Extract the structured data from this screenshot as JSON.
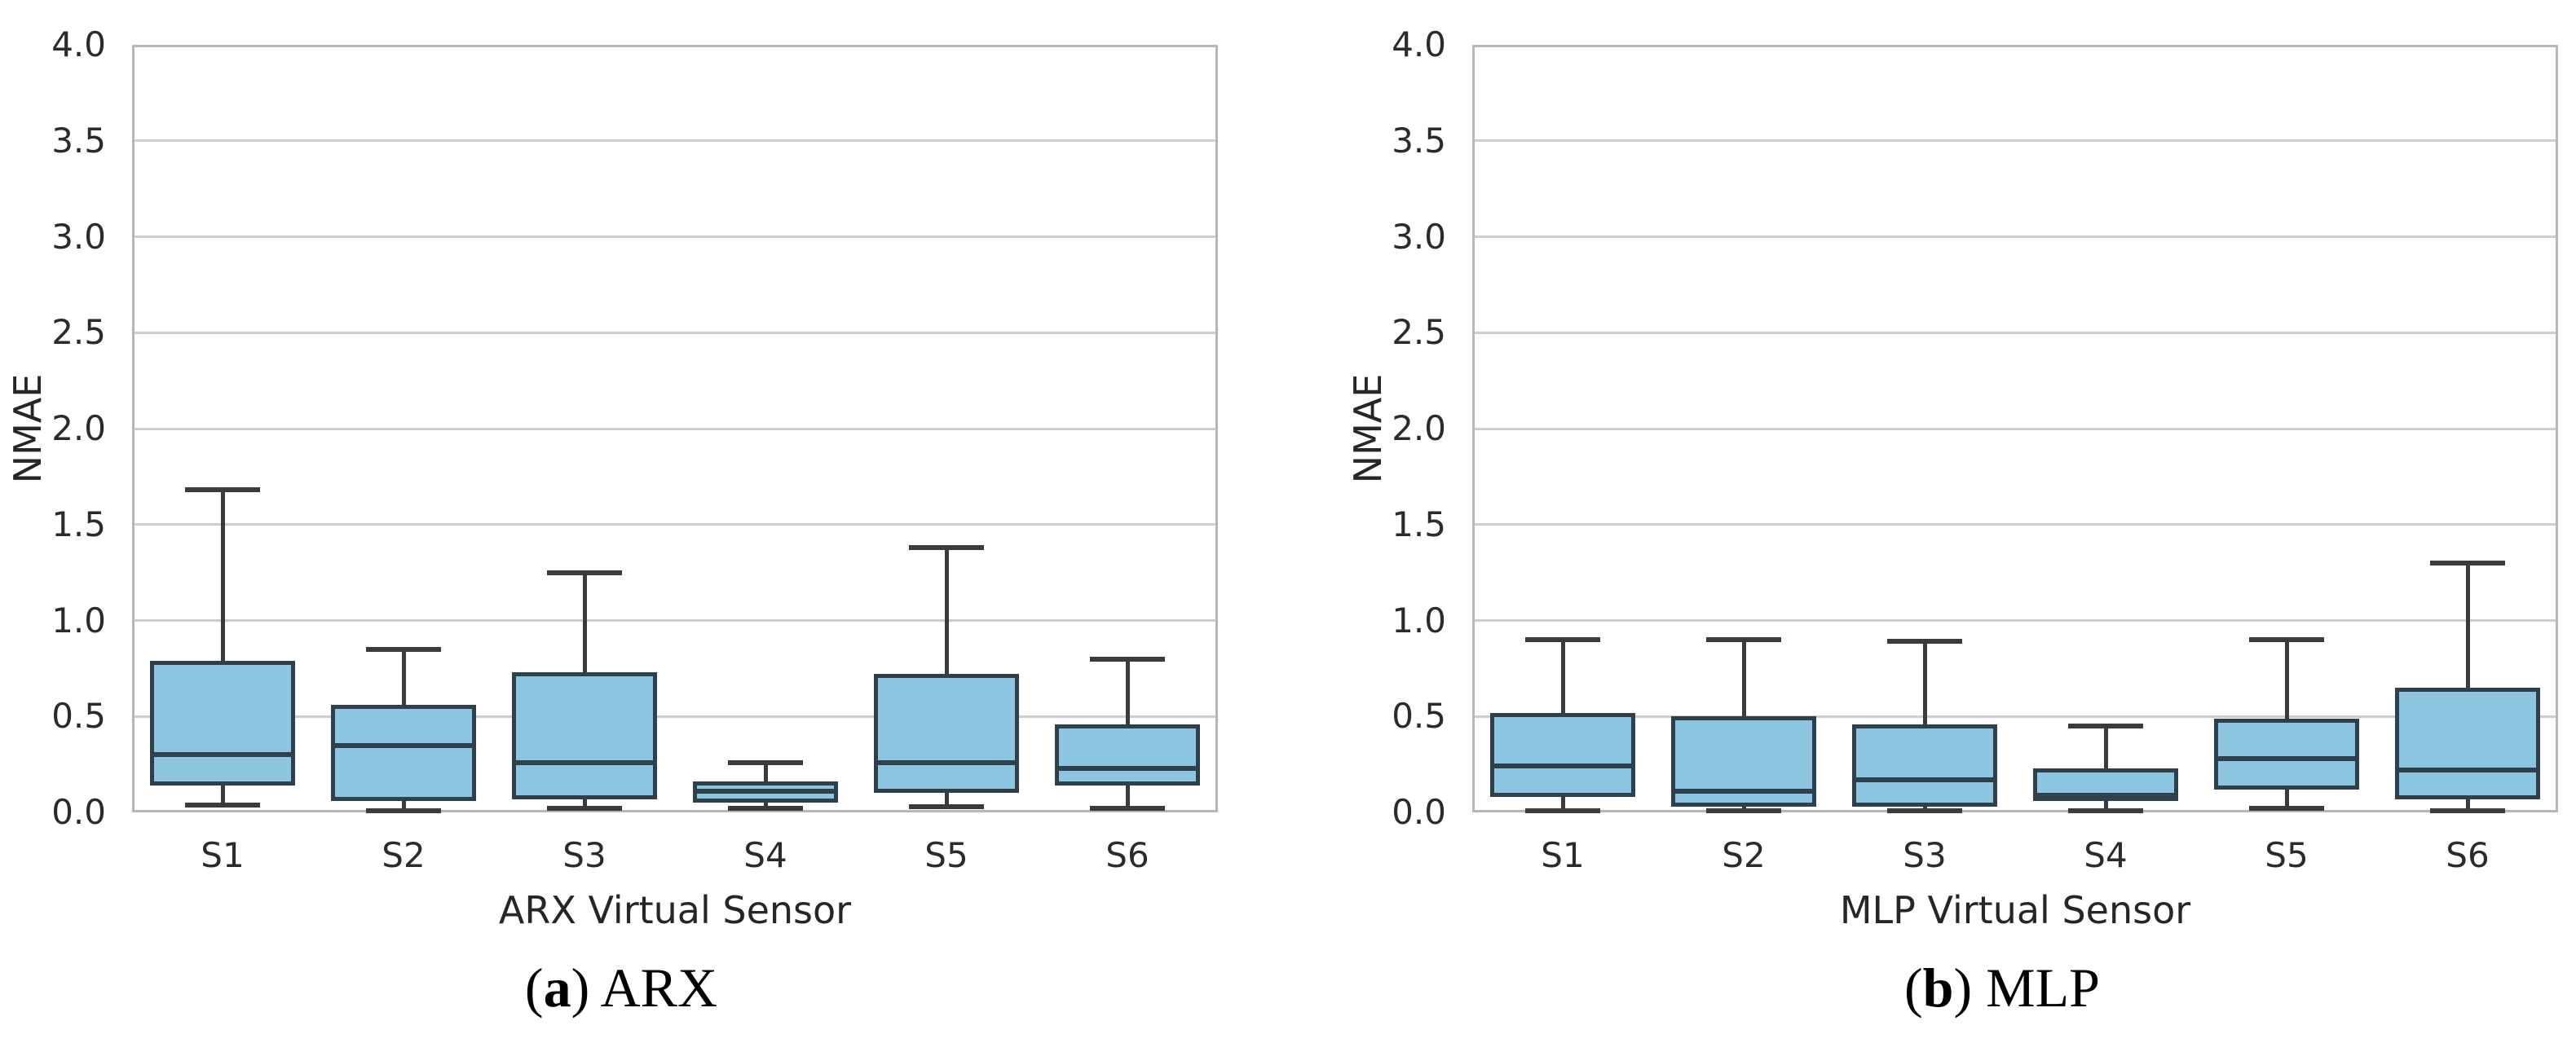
{
  "style": {
    "box_fill": "#8cc5df",
    "box_edge": "#2f3f4c",
    "whisker_color": "#3b3b3b",
    "grid_color": "#cdcdcd",
    "spine_color": "#b6b6b6",
    "tick_text_color": "#2b2b2b",
    "label_text_color": "#262626"
  },
  "chart_data": [
    {
      "type": "boxplot",
      "panel": "a",
      "caption_letter": "a",
      "caption_label": "ARX",
      "xlabel": "ARX Virtual Sensor",
      "ylabel": "NMAE",
      "ylim": [
        0.0,
        4.0
      ],
      "ytick_step": 0.5,
      "grid": "horizontal",
      "legend": "none",
      "categories": [
        "S1",
        "S2",
        "S3",
        "S4",
        "S5",
        "S6"
      ],
      "boxes": [
        {
          "category": "S1",
          "whislo": 0.04,
          "q1": 0.14,
          "med": 0.3,
          "q3": 0.79,
          "whishi": 1.68
        },
        {
          "category": "S2",
          "whislo": 0.01,
          "q1": 0.06,
          "med": 0.35,
          "q3": 0.56,
          "whishi": 0.85
        },
        {
          "category": "S3",
          "whislo": 0.02,
          "q1": 0.07,
          "med": 0.26,
          "q3": 0.73,
          "whishi": 1.25
        },
        {
          "category": "S4",
          "whislo": 0.02,
          "q1": 0.05,
          "med": 0.11,
          "q3": 0.16,
          "whishi": 0.26
        },
        {
          "category": "S5",
          "whislo": 0.03,
          "q1": 0.1,
          "med": 0.26,
          "q3": 0.72,
          "whishi": 1.38
        },
        {
          "category": "S6",
          "whislo": 0.02,
          "q1": 0.14,
          "med": 0.23,
          "q3": 0.46,
          "whishi": 0.8
        }
      ]
    },
    {
      "type": "boxplot",
      "panel": "b",
      "caption_letter": "b",
      "caption_label": "MLP",
      "xlabel": "MLP Virtual Sensor",
      "ylabel": "NMAE",
      "ylim": [
        0.0,
        4.0
      ],
      "ytick_step": 0.5,
      "grid": "horizontal",
      "legend": "none",
      "categories": [
        "S1",
        "S2",
        "S3",
        "S4",
        "S5",
        "S6"
      ],
      "boxes": [
        {
          "category": "S1",
          "whislo": 0.01,
          "q1": 0.08,
          "med": 0.24,
          "q3": 0.52,
          "whishi": 0.9
        },
        {
          "category": "S2",
          "whislo": 0.01,
          "q1": 0.03,
          "med": 0.11,
          "q3": 0.5,
          "whishi": 0.9
        },
        {
          "category": "S3",
          "whislo": 0.01,
          "q1": 0.03,
          "med": 0.17,
          "q3": 0.46,
          "whishi": 0.89
        },
        {
          "category": "S4",
          "whislo": 0.01,
          "q1": 0.06,
          "med": 0.09,
          "q3": 0.23,
          "whishi": 0.45
        },
        {
          "category": "S5",
          "whislo": 0.02,
          "q1": 0.12,
          "med": 0.28,
          "q3": 0.49,
          "whishi": 0.9
        },
        {
          "category": "S6",
          "whislo": 0.01,
          "q1": 0.07,
          "med": 0.22,
          "q3": 0.65,
          "whishi": 1.3
        }
      ]
    }
  ]
}
